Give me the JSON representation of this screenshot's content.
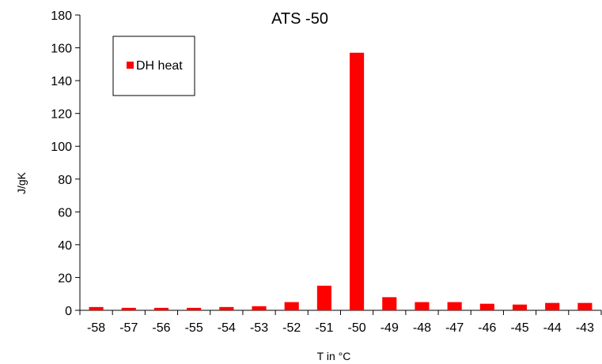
{
  "chart_data": {
    "type": "bar",
    "title": "ATS -50",
    "xlabel": "T in °C",
    "ylabel": "J/gK",
    "categories": [
      "-58",
      "-57",
      "-56",
      "-55",
      "-54",
      "-53",
      "-52",
      "-51",
      "-50",
      "-49",
      "-48",
      "-47",
      "-46",
      "-45",
      "-44",
      "-43"
    ],
    "series": [
      {
        "name": "DH heat",
        "color": "#ff0000",
        "values": [
          2,
          1.5,
          1.5,
          1.5,
          2,
          2.5,
          5,
          15,
          157,
          8,
          5,
          5,
          4,
          3.5,
          4.5,
          4.5
        ]
      }
    ],
    "ylim": [
      0,
      180
    ],
    "yticks": [
      0,
      20,
      40,
      60,
      80,
      100,
      120,
      140,
      160,
      180
    ],
    "grid": false,
    "legend_position": "top-left"
  }
}
